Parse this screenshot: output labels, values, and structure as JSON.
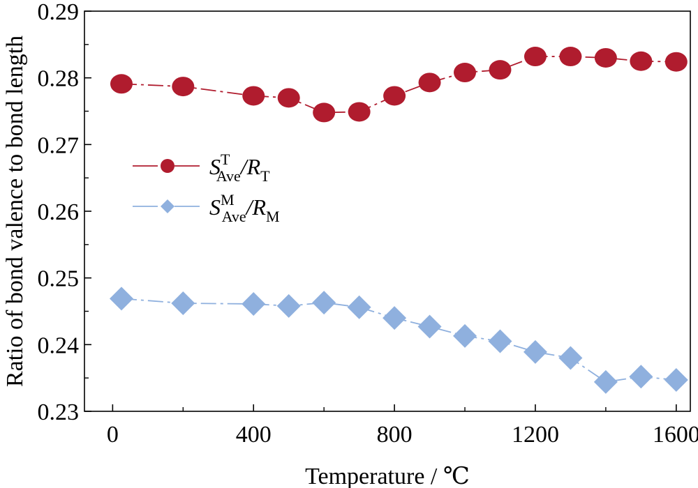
{
  "chart_data": {
    "type": "line",
    "xlabel": "Temperature / ℃",
    "ylabel": "Ratio of bond valence to bond length",
    "xlim": [
      -80,
      1640
    ],
    "ylim": [
      0.23,
      0.29
    ],
    "xticks": [
      0,
      400,
      800,
      1200,
      1600
    ],
    "xtick_labels": [
      "0",
      "400",
      "800",
      "1200",
      "1600"
    ],
    "yticks": [
      0.23,
      0.24,
      0.25,
      0.26,
      0.27,
      0.28,
      0.29
    ],
    "ytick_labels": [
      "0.23",
      "0.24",
      "0.25",
      "0.26",
      "0.27",
      "0.28",
      "0.29"
    ],
    "x": [
      25,
      200,
      400,
      500,
      600,
      700,
      800,
      900,
      1000,
      1100,
      1200,
      1300,
      1400,
      1500,
      1600
    ],
    "series": [
      {
        "id": "T",
        "legend": {
          "main": "S",
          "sup": "T",
          "sub": "Ave",
          "slash": "/",
          "r": "R",
          "rsub": "T"
        },
        "marker": "circle",
        "color": "#b01c2e",
        "values": [
          0.2791,
          0.2787,
          0.2773,
          0.277,
          0.2748,
          0.2749,
          0.2773,
          0.2793,
          0.2808,
          0.2812,
          0.2832,
          0.2832,
          0.283,
          0.2825,
          0.2824
        ]
      },
      {
        "id": "M",
        "legend": {
          "main": "S",
          "sup": "M",
          "sub": "Ave",
          "slash": "/",
          "r": "R",
          "rsub": "M"
        },
        "marker": "diamond",
        "color": "#8fb0de",
        "values": [
          0.2469,
          0.2462,
          0.2461,
          0.2458,
          0.2463,
          0.2456,
          0.244,
          0.2427,
          0.2413,
          0.2405,
          0.2389,
          0.238,
          0.2344,
          0.2352,
          0.2347
        ]
      }
    ],
    "legend_position": "middle-left",
    "grid": false
  }
}
